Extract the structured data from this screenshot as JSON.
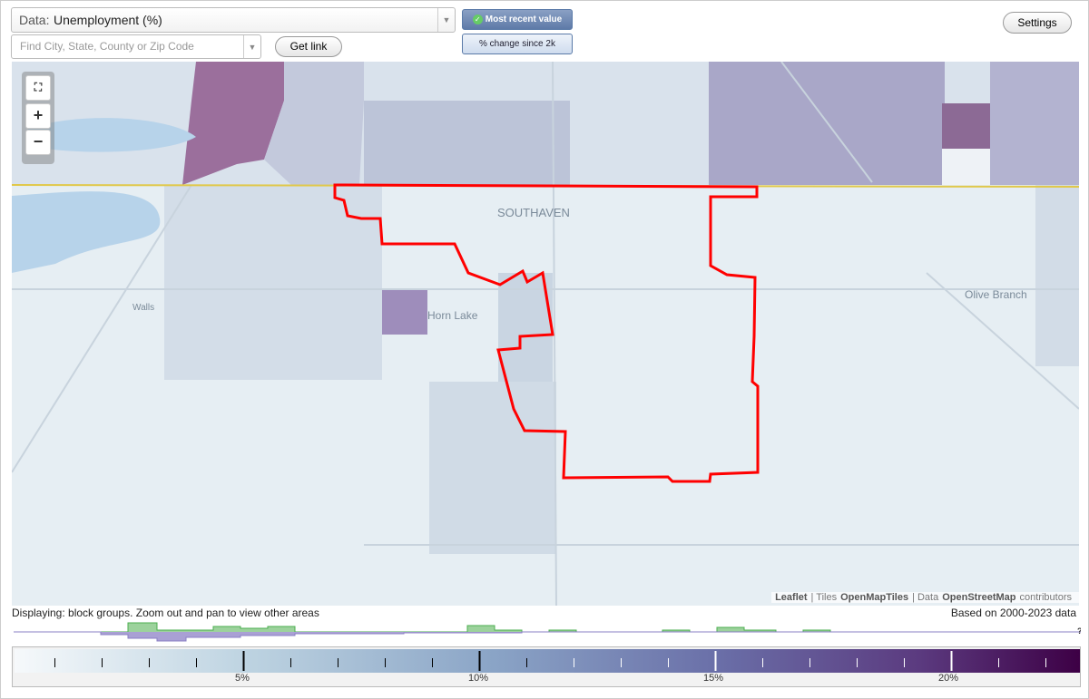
{
  "toolbar": {
    "data_prefix": "Data:",
    "data_value": "Unemployment (%)",
    "search_placeholder": "Find City, State, County or Zip Code",
    "get_link": "Get link",
    "most_recent": "Most recent value",
    "change": "% change since 2k",
    "settings": "Settings"
  },
  "zoom": {
    "zoom_in": "+",
    "zoom_out": "−"
  },
  "map": {
    "labels": [
      "SOUTHAVEN",
      "Horn Lake",
      "Walls",
      "Olive Branch"
    ],
    "attribution": [
      "Leaflet",
      "| Tiles",
      "OpenMapTiles",
      "| Data",
      "OpenStreetMap",
      "contributors"
    ]
  },
  "footer": {
    "displaying": "Displaying: block groups. Zoom out and pan to view other areas",
    "based_on": "Based on 2000-2023 data"
  },
  "legend": {
    "ticks": [
      "5%",
      "10%",
      "15%",
      "20%"
    ],
    "help": "?"
  }
}
